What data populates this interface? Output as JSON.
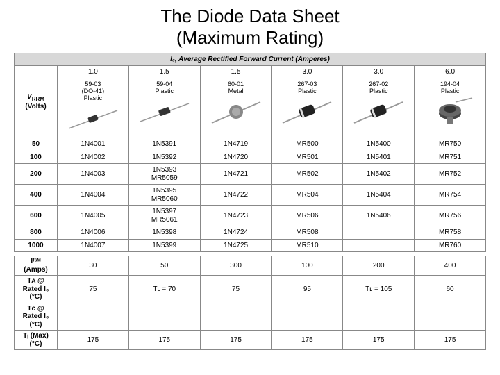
{
  "title": "The Diode Data Sheet\n(Maximum Rating)",
  "table_header": "I₀, Average Rectified Forward Current (Amperes)",
  "side_label_vrrm": "Vᴿᴿᴹ\n(Volts)",
  "current_cols": [
    "1.0",
    "1.5",
    "1.5",
    "3.0",
    "3.0",
    "6.0"
  ],
  "packages": [
    {
      "code": "59-03",
      "desc": "(DO-41)",
      "mat": "Plastic"
    },
    {
      "code": "59-04",
      "desc": "",
      "mat": "Plastic"
    },
    {
      "code": "60-01",
      "desc": "",
      "mat": "Metal"
    },
    {
      "code": "267-03",
      "desc": "",
      "mat": "Plastic"
    },
    {
      "code": "267-02",
      "desc": "",
      "mat": "Plastic"
    },
    {
      "code": "194-04",
      "desc": "",
      "mat": "Plastic"
    }
  ],
  "vrrm_rows": [
    {
      "v": "50",
      "parts": [
        "1N4001",
        "1N5391",
        "1N4719",
        "MR500",
        "1N5400",
        "MR750"
      ]
    },
    {
      "v": "100",
      "parts": [
        "1N4002",
        "1N5392",
        "1N4720",
        "MR501",
        "1N5401",
        "MR751"
      ]
    },
    {
      "v": "200",
      "parts": [
        "1N4003",
        "1N5393\nMR5059",
        "1N4721",
        "MR502",
        "1N5402",
        "MR752"
      ]
    },
    {
      "v": "400",
      "parts": [
        "1N4004",
        "1N5395\nMR5060",
        "1N4722",
        "MR504",
        "1N5404",
        "MR754"
      ]
    },
    {
      "v": "600",
      "parts": [
        "1N4005",
        "1N5397\nMR5061",
        "1N4723",
        "MR506",
        "1N5406",
        "MR756"
      ]
    },
    {
      "v": "800",
      "parts": [
        "1N4006",
        "1N5398",
        "1N4724",
        "MR508",
        "",
        "MR758"
      ]
    },
    {
      "v": "1000",
      "parts": [
        "1N4007",
        "1N5399",
        "1N4725",
        "MR510",
        "",
        "MR760"
      ]
    }
  ],
  "bottom_rows": [
    {
      "label": "Iᶠˢᴹ\n(Amps)",
      "vals": [
        "30",
        "50",
        "300",
        "100",
        "200",
        "400"
      ]
    },
    {
      "label": "Tᴀ @ Rated I₀\n(°C)",
      "vals": [
        "75",
        "Tʟ = 70",
        "75",
        "95",
        "Tʟ = 105",
        "60"
      ]
    },
    {
      "label": "Tᴄ @ Rated I₀\n(°C)",
      "vals": [
        "",
        "",
        "",
        "",
        "",
        ""
      ]
    },
    {
      "label": "Tⱼ (Max)\n(°C)",
      "vals": [
        "175",
        "175",
        "175",
        "175",
        "175",
        "175"
      ]
    }
  ],
  "diode_shapes": [
    "small",
    "small",
    "metal",
    "barrel",
    "barrel",
    "stud"
  ],
  "colors": {
    "border": "#888888",
    "header_bg": "#d8d8d8",
    "diode_body": "#333333",
    "diode_lead": "#999999",
    "metal_body": "#888888",
    "stud_body": "#555555"
  }
}
